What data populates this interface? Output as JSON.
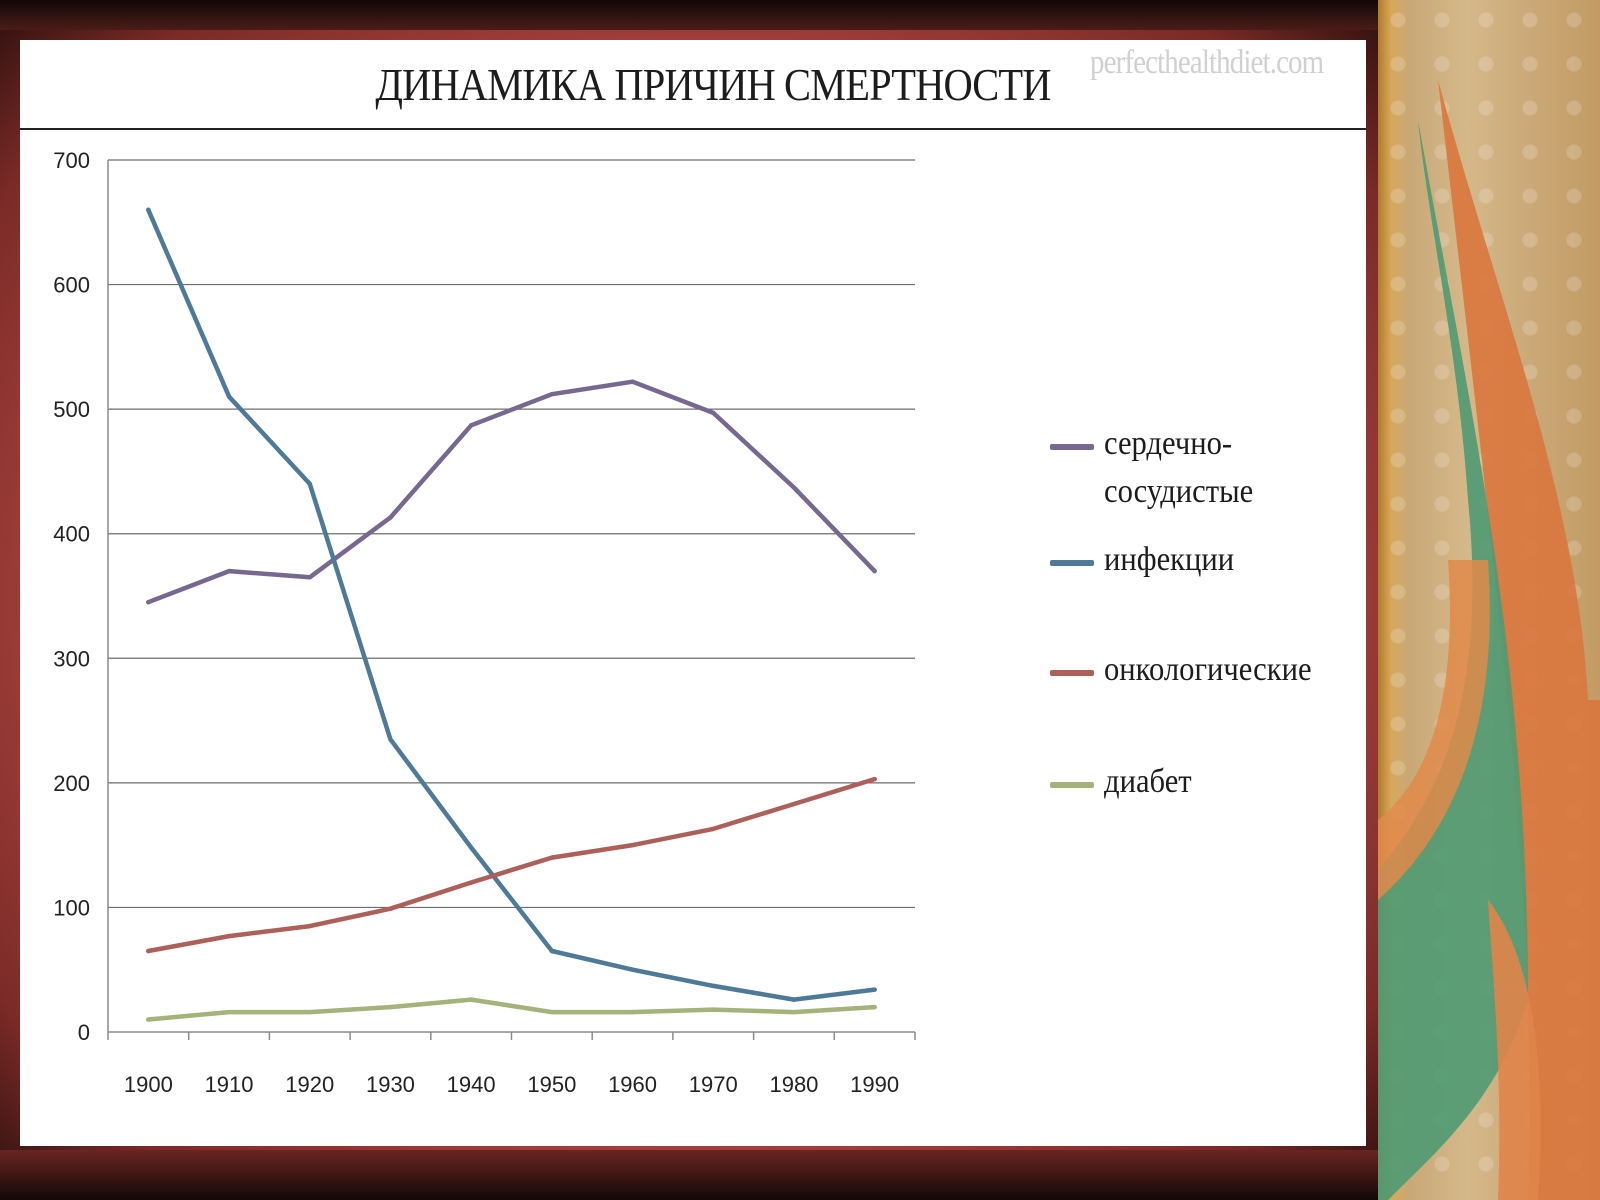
{
  "slide": {
    "title": "ДИНАМИКА ПРИЧИН СМЕРТНОСТИ",
    "watermark": "perfecthealthdiet.com"
  },
  "chart_data": {
    "type": "line",
    "title": "ДИНАМИКА ПРИЧИН СМЕРТНОСТИ",
    "xlabel": "",
    "ylabel": "",
    "x": [
      1900,
      1910,
      1920,
      1930,
      1940,
      1950,
      1960,
      1970,
      1980,
      1990
    ],
    "ylim": [
      0,
      700
    ],
    "yticks": [
      0,
      100,
      200,
      300,
      400,
      500,
      600,
      700
    ],
    "grid": true,
    "legend_position": "right",
    "series": [
      {
        "name": "сердечно-сосудистые",
        "color": "#76688f",
        "values": [
          345,
          370,
          365,
          413,
          487,
          512,
          522,
          497,
          437,
          370
        ]
      },
      {
        "name": "инфекции",
        "color": "#4e7a98",
        "values": [
          660,
          510,
          440,
          235,
          148,
          65,
          50,
          37,
          26,
          34
        ]
      },
      {
        "name": "онкологические",
        "color": "#ad5f59",
        "values": [
          65,
          77,
          85,
          99,
          120,
          140,
          150,
          163,
          183,
          203
        ]
      },
      {
        "name": "диабет",
        "color": "#a4b37a",
        "values": [
          10,
          16,
          16,
          20,
          26,
          16,
          16,
          18,
          16,
          20
        ]
      }
    ]
  },
  "legend": {
    "items": [
      {
        "label": "сердечно-сосудистые",
        "line1": "сердечно-",
        "line2": "сосудистые",
        "color": "#76688f"
      },
      {
        "label": "инфекции",
        "color": "#4e7a98"
      },
      {
        "label": "онкологические",
        "color": "#ad5f59"
      },
      {
        "label": "диабет",
        "color": "#a4b37a"
      }
    ]
  },
  "theme": {
    "frame_color": "#b44944",
    "slide_background": "#ffffff",
    "grid_color": "#6e6e6e"
  }
}
